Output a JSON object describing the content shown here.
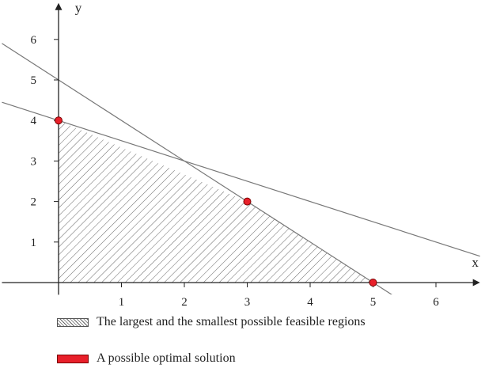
{
  "chart_data": {
    "type": "line",
    "title": "",
    "xlabel": "x",
    "ylabel": "y",
    "xlim": [
      -0.9,
      6.7
    ],
    "ylim": [
      -0.3,
      6.9
    ],
    "x_ticks": [
      "1",
      "2",
      "3",
      "4",
      "5",
      "6"
    ],
    "y_ticks": [
      "1",
      "2",
      "3",
      "4",
      "5",
      "6"
    ],
    "grid": false,
    "series": [
      {
        "kind": "line",
        "points": [
          [
            -0.9,
            4.45
          ],
          [
            6.7,
            0.65
          ]
        ]
      },
      {
        "kind": "line",
        "points": [
          [
            -0.9,
            5.9
          ],
          [
            5.9,
            -0.9
          ]
        ]
      },
      {
        "kind": "region",
        "name": "The largest and the smallest possible feasible regions",
        "polygon": [
          [
            0,
            0
          ],
          [
            0,
            4
          ],
          [
            3,
            2
          ],
          [
            5,
            0
          ]
        ]
      },
      {
        "kind": "points",
        "name": "A possible optimal solution",
        "points": [
          [
            0,
            4
          ],
          [
            3,
            2
          ],
          [
            5,
            0
          ]
        ]
      }
    ],
    "colors": {
      "line": "#777777",
      "point": "#e8202a",
      "hatch": "#666666",
      "axis": "#222222"
    },
    "legend_placement": "bottom-left"
  },
  "legend": {
    "region_label": "The largest and the smallest possible feasible regions",
    "point_label": "A possible optimal solution"
  }
}
